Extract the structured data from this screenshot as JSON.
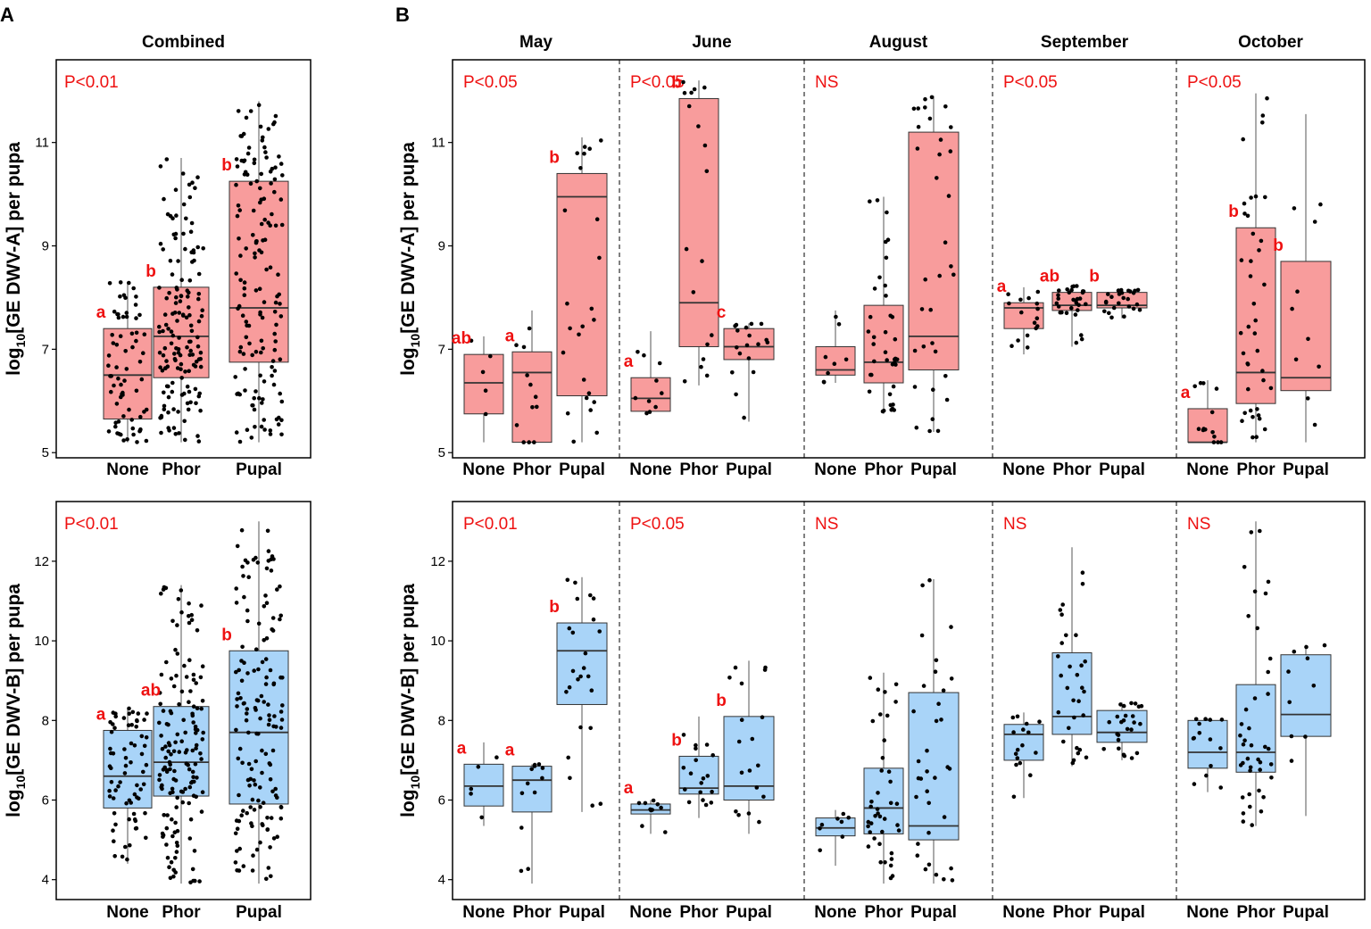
{
  "panel_labels": {
    "A": "A",
    "B": "B"
  },
  "colors": {
    "dwv_a_fill": "#F89C9C",
    "dwv_b_fill": "#A9D4F8",
    "annotation": "#EE1111",
    "point": "#000000",
    "frame": "#000000",
    "separator": "#000000"
  },
  "ylabel_prefix": "log",
  "ylabel_sub": "10",
  "ylabels": {
    "a": "[GE DWV-A] per pupa",
    "b": "[GE DWV-B] per pupa"
  },
  "ticks": {
    "a": {
      "values": [
        5,
        7,
        9,
        11
      ],
      "labels": [
        "5",
        "7",
        "9",
        "11"
      ]
    },
    "b": {
      "values": [
        4,
        6,
        8,
        10,
        12
      ],
      "labels": [
        "4",
        "6",
        "8",
        "10",
        "12"
      ]
    }
  },
  "chart_data": [
    {
      "type": "box",
      "panel": "A",
      "row": "DWV-A",
      "title": "Combined",
      "stat": "P<0.01",
      "categories": [
        "None",
        "Phor",
        "Pupal"
      ],
      "ylim": [
        4.9,
        12.6
      ],
      "boxes": [
        {
          "q1": 5.65,
          "median": 6.5,
          "q3": 7.4,
          "whisker_low": 5.2,
          "whisker_high": 8.3,
          "letter": "a",
          "n": 70
        },
        {
          "q1": 6.45,
          "median": 7.25,
          "q3": 8.2,
          "whisker_low": 5.2,
          "whisker_high": 10.7,
          "letter": "b",
          "n": 150
        },
        {
          "q1": 6.75,
          "median": 7.8,
          "q3": 10.25,
          "whisker_low": 5.2,
          "whisker_high": 11.8,
          "letter": "b",
          "n": 150
        }
      ]
    },
    {
      "type": "box",
      "panel": "A",
      "row": "DWV-B",
      "title": "",
      "stat": "P<0.01",
      "categories": [
        "None",
        "Phor",
        "Pupal"
      ],
      "ylim": [
        3.5,
        13.5
      ],
      "boxes": [
        {
          "q1": 5.8,
          "median": 6.6,
          "q3": 7.75,
          "whisker_low": 4.4,
          "whisker_high": 8.3,
          "letter": "a",
          "n": 70
        },
        {
          "q1": 6.1,
          "median": 6.95,
          "q3": 8.35,
          "whisker_low": 3.9,
          "whisker_high": 11.4,
          "letter": "ab",
          "n": 150
        },
        {
          "q1": 5.9,
          "median": 7.7,
          "q3": 9.75,
          "whisker_low": 3.9,
          "whisker_high": 13.0,
          "letter": "b",
          "n": 150
        }
      ]
    },
    {
      "type": "box",
      "panel": "B",
      "row": "DWV-A",
      "categories": [
        "None",
        "Phor",
        "Pupal"
      ],
      "ylim": [
        4.9,
        12.6
      ],
      "facets": [
        {
          "title": "May",
          "stat": "P<0.05",
          "boxes": [
            {
              "q1": 5.75,
              "median": 6.35,
              "q3": 6.9,
              "whisker_low": 5.2,
              "whisker_high": 7.25,
              "letter": "ab",
              "n": 5
            },
            {
              "q1": 5.2,
              "median": 6.55,
              "q3": 6.95,
              "whisker_low": 5.2,
              "whisker_high": 7.75,
              "letter": "a",
              "n": 12
            },
            {
              "q1": 6.1,
              "median": 9.95,
              "q3": 10.4,
              "whisker_low": 5.2,
              "whisker_high": 11.1,
              "letter": "b",
              "n": 24
            }
          ]
        },
        {
          "title": "June",
          "stat": "P<0.05",
          "boxes": [
            {
              "q1": 5.8,
              "median": 6.05,
              "q3": 6.45,
              "whisker_low": 5.75,
              "whisker_high": 7.35,
              "letter": "a",
              "n": 10
            },
            {
              "q1": 7.05,
              "median": 7.9,
              "q3": 11.85,
              "whisker_low": 6.3,
              "whisker_high": 12.2,
              "letter": "b",
              "n": 18
            },
            {
              "q1": 6.8,
              "median": 7.05,
              "q3": 7.4,
              "whisker_low": 5.6,
              "whisker_high": 7.5,
              "letter": "c",
              "n": 18
            }
          ]
        },
        {
          "title": "August",
          "stat": "NS",
          "boxes": [
            {
              "q1": 6.5,
              "median": 6.6,
              "q3": 7.05,
              "whisker_low": 6.35,
              "whisker_high": 7.75,
              "letter": "",
              "n": 8
            },
            {
              "q1": 6.35,
              "median": 6.75,
              "q3": 7.85,
              "whisker_low": 5.75,
              "whisker_high": 9.95,
              "letter": "",
              "n": 40
            },
            {
              "q1": 6.6,
              "median": 7.25,
              "q3": 11.2,
              "whisker_low": 5.4,
              "whisker_high": 11.9,
              "letter": "",
              "n": 34
            }
          ]
        },
        {
          "title": "September",
          "stat": "P<0.05",
          "boxes": [
            {
              "q1": 7.4,
              "median": 7.8,
              "q3": 7.9,
              "whisker_low": 6.9,
              "whisker_high": 8.2,
              "letter": "a",
              "n": 16
            },
            {
              "q1": 7.75,
              "median": 7.85,
              "q3": 8.1,
              "whisker_low": 7.05,
              "whisker_high": 8.25,
              "letter": "ab",
              "n": 30
            },
            {
              "q1": 7.8,
              "median": 7.85,
              "q3": 8.1,
              "whisker_low": 7.6,
              "whisker_high": 8.15,
              "letter": "b",
              "n": 25
            }
          ]
        },
        {
          "title": "October",
          "stat": "P<0.05",
          "boxes": [
            {
              "q1": 5.2,
              "median": 5.2,
              "q3": 5.85,
              "whisker_low": 5.2,
              "whisker_high": 6.4,
              "letter": "a",
              "n": 14
            },
            {
              "q1": 5.95,
              "median": 6.55,
              "q3": 9.35,
              "whisker_low": 5.2,
              "whisker_high": 11.95,
              "letter": "b",
              "n": 40
            },
            {
              "q1": 6.2,
              "median": 6.45,
              "q3": 8.7,
              "whisker_low": 5.2,
              "whisker_high": 11.55,
              "letter": "b",
              "n": 10
            }
          ]
        }
      ]
    },
    {
      "type": "box",
      "panel": "B",
      "row": "DWV-B",
      "categories": [
        "None",
        "Phor",
        "Pupal"
      ],
      "ylim": [
        3.5,
        13.5
      ],
      "facets": [
        {
          "title": "May",
          "stat": "P<0.01",
          "boxes": [
            {
              "q1": 5.85,
              "median": 6.35,
              "q3": 6.9,
              "whisker_low": 5.35,
              "whisker_high": 7.45,
              "letter": "a",
              "n": 5
            },
            {
              "q1": 5.7,
              "median": 6.5,
              "q3": 6.85,
              "whisker_low": 3.9,
              "whisker_high": 6.9,
              "letter": "a",
              "n": 12
            },
            {
              "q1": 8.4,
              "median": 9.75,
              "q3": 10.45,
              "whisker_low": 5.7,
              "whisker_high": 11.6,
              "letter": "b",
              "n": 24
            }
          ]
        },
        {
          "title": "June",
          "stat": "P<0.05",
          "boxes": [
            {
              "q1": 5.65,
              "median": 5.75,
              "q3": 5.9,
              "whisker_low": 5.15,
              "whisker_high": 6.0,
              "letter": "a",
              "n": 10
            },
            {
              "q1": 6.15,
              "median": 6.3,
              "q3": 7.1,
              "whisker_low": 5.55,
              "whisker_high": 8.1,
              "letter": "b",
              "n": 18
            },
            {
              "q1": 6.0,
              "median": 6.35,
              "q3": 8.1,
              "whisker_low": 5.15,
              "whisker_high": 9.5,
              "letter": "b",
              "n": 18
            }
          ]
        },
        {
          "title": "August",
          "stat": "NS",
          "boxes": [
            {
              "q1": 5.1,
              "median": 5.3,
              "q3": 5.55,
              "whisker_low": 4.35,
              "whisker_high": 5.75,
              "letter": "",
              "n": 8
            },
            {
              "q1": 5.15,
              "median": 5.8,
              "q3": 6.8,
              "whisker_low": 3.9,
              "whisker_high": 9.2,
              "letter": "",
              "n": 40
            },
            {
              "q1": 5.0,
              "median": 5.35,
              "q3": 8.7,
              "whisker_low": 3.9,
              "whisker_high": 11.55,
              "letter": "",
              "n": 34
            }
          ]
        },
        {
          "title": "September",
          "stat": "NS",
          "boxes": [
            {
              "q1": 7.0,
              "median": 7.65,
              "q3": 7.9,
              "whisker_low": 6.05,
              "whisker_high": 8.2,
              "letter": "",
              "n": 16
            },
            {
              "q1": 7.65,
              "median": 8.1,
              "q3": 9.7,
              "whisker_low": 6.85,
              "whisker_high": 12.35,
              "letter": "",
              "n": 30
            },
            {
              "q1": 7.45,
              "median": 7.7,
              "q3": 8.25,
              "whisker_low": 7.0,
              "whisker_high": 8.45,
              "letter": "",
              "n": 25
            }
          ]
        },
        {
          "title": "October",
          "stat": "NS",
          "boxes": [
            {
              "q1": 6.8,
              "median": 7.2,
              "q3": 8.0,
              "whisker_low": 6.2,
              "whisker_high": 8.05,
              "letter": "",
              "n": 14
            },
            {
              "q1": 6.7,
              "median": 7.2,
              "q3": 8.9,
              "whisker_low": 5.35,
              "whisker_high": 13.0,
              "letter": "",
              "n": 40
            },
            {
              "q1": 7.6,
              "median": 8.15,
              "q3": 9.65,
              "whisker_low": 5.6,
              "whisker_high": 9.9,
              "letter": "",
              "n": 10
            }
          ]
        }
      ]
    }
  ]
}
